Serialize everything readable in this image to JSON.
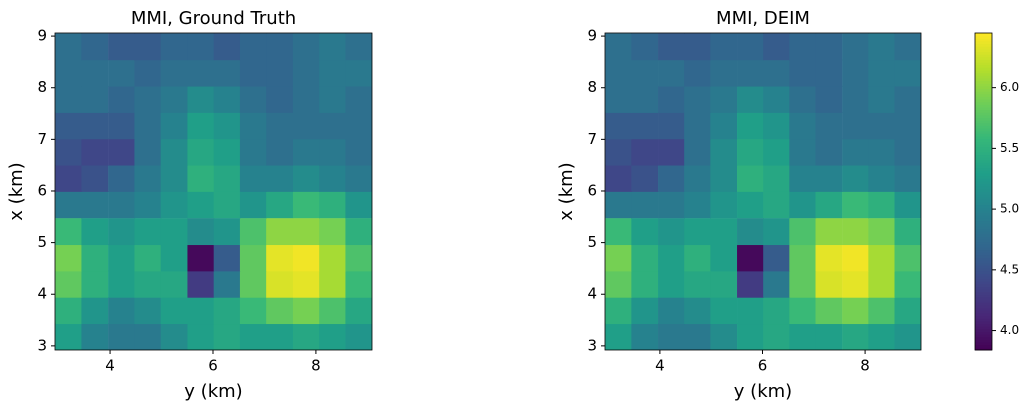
{
  "chart_data": [
    {
      "type": "heatmap",
      "title": "MMI, Ground Truth",
      "xlabel": "y (km)",
      "ylabel": "x (km)",
      "xlim": [
        2.93,
        9.09
      ],
      "ylim": [
        2.92,
        9.06
      ],
      "xticks": [
        4,
        6,
        8
      ],
      "yticks": [
        3,
        4,
        5,
        6,
        7,
        8,
        9
      ],
      "colormap": "viridis",
      "x": [
        3.19,
        3.7,
        4.22,
        4.73,
        5.24,
        5.76,
        6.27,
        6.78,
        7.29,
        7.81,
        8.32,
        8.83
      ],
      "y": [
        3.18,
        3.69,
        4.2,
        4.71,
        5.22,
        5.74,
        6.25,
        6.76,
        7.27,
        7.78,
        8.29,
        8.8
      ],
      "values": [
        [
          5.3,
          5.0,
          4.9,
          4.9,
          5.1,
          5.3,
          5.4,
          5.3,
          5.3,
          5.4,
          5.3,
          5.2
        ],
        [
          5.5,
          5.2,
          5.0,
          5.1,
          5.3,
          5.3,
          5.4,
          5.6,
          5.8,
          5.9,
          5.7,
          5.4
        ],
        [
          5.8,
          5.5,
          5.3,
          5.4,
          5.4,
          4.3,
          4.9,
          5.8,
          6.3,
          6.35,
          6.1,
          5.6
        ],
        [
          5.9,
          5.5,
          5.3,
          5.5,
          5.3,
          3.9,
          4.6,
          5.8,
          6.35,
          6.4,
          6.1,
          5.7
        ],
        [
          5.6,
          5.3,
          5.2,
          5.3,
          5.3,
          5.1,
          5.2,
          5.7,
          6.0,
          6.0,
          5.9,
          5.5
        ],
        [
          4.9,
          4.9,
          4.9,
          5.0,
          5.2,
          5.3,
          5.4,
          5.2,
          5.4,
          5.6,
          5.5,
          5.2
        ],
        [
          4.4,
          4.5,
          4.7,
          4.9,
          5.1,
          5.5,
          5.4,
          5.0,
          5.0,
          5.1,
          5.0,
          4.9
        ],
        [
          4.5,
          4.4,
          4.4,
          4.8,
          5.1,
          5.4,
          5.3,
          4.9,
          4.8,
          4.9,
          4.9,
          4.8
        ],
        [
          4.6,
          4.6,
          4.6,
          4.8,
          5.0,
          5.3,
          5.2,
          4.9,
          4.8,
          4.8,
          4.8,
          4.8
        ],
        [
          4.8,
          4.8,
          4.7,
          4.8,
          4.9,
          5.1,
          5.0,
          4.8,
          4.7,
          4.8,
          4.9,
          4.8
        ],
        [
          4.8,
          4.8,
          4.8,
          4.7,
          4.8,
          4.8,
          4.8,
          4.7,
          4.7,
          4.8,
          4.9,
          4.9
        ],
        [
          4.8,
          4.7,
          4.6,
          4.6,
          4.7,
          4.7,
          4.6,
          4.7,
          4.7,
          4.8,
          4.9,
          4.8
        ]
      ]
    },
    {
      "type": "heatmap",
      "title": "MMI, DEIM",
      "xlabel": "y (km)",
      "ylabel": "x (km)",
      "xlim": [
        2.93,
        9.09
      ],
      "ylim": [
        2.92,
        9.06
      ],
      "xticks": [
        4,
        6,
        8
      ],
      "yticks": [
        3,
        4,
        5,
        6,
        7,
        8,
        9
      ],
      "colormap": "viridis",
      "x": [
        3.19,
        3.7,
        4.22,
        4.73,
        5.24,
        5.76,
        6.27,
        6.78,
        7.29,
        7.81,
        8.32,
        8.83
      ],
      "y": [
        3.18,
        3.69,
        4.2,
        4.71,
        5.22,
        5.74,
        6.25,
        6.76,
        7.27,
        7.78,
        8.29,
        8.8
      ],
      "values": [
        [
          5.3,
          5.0,
          4.9,
          4.9,
          5.1,
          5.3,
          5.4,
          5.3,
          5.3,
          5.4,
          5.3,
          5.2
        ],
        [
          5.5,
          5.2,
          5.0,
          5.1,
          5.3,
          5.3,
          5.4,
          5.6,
          5.8,
          5.9,
          5.7,
          5.4
        ],
        [
          5.8,
          5.5,
          5.3,
          5.4,
          5.4,
          4.3,
          4.9,
          5.8,
          6.3,
          6.35,
          6.1,
          5.6
        ],
        [
          5.9,
          5.5,
          5.3,
          5.5,
          5.3,
          3.9,
          4.6,
          5.8,
          6.35,
          6.4,
          6.1,
          5.7
        ],
        [
          5.6,
          5.3,
          5.2,
          5.3,
          5.3,
          5.1,
          5.2,
          5.7,
          6.0,
          6.0,
          5.9,
          5.5
        ],
        [
          4.9,
          4.9,
          4.9,
          5.0,
          5.2,
          5.3,
          5.4,
          5.2,
          5.4,
          5.6,
          5.5,
          5.2
        ],
        [
          4.4,
          4.5,
          4.7,
          4.9,
          5.1,
          5.5,
          5.4,
          5.0,
          5.0,
          5.1,
          5.0,
          4.9
        ],
        [
          4.5,
          4.4,
          4.4,
          4.8,
          5.1,
          5.4,
          5.3,
          4.9,
          4.8,
          4.9,
          4.9,
          4.8
        ],
        [
          4.6,
          4.6,
          4.6,
          4.8,
          5.0,
          5.3,
          5.2,
          4.9,
          4.8,
          4.8,
          4.8,
          4.8
        ],
        [
          4.8,
          4.8,
          4.7,
          4.8,
          4.9,
          5.1,
          5.0,
          4.8,
          4.7,
          4.8,
          4.9,
          4.8
        ],
        [
          4.8,
          4.8,
          4.8,
          4.7,
          4.8,
          4.8,
          4.8,
          4.7,
          4.7,
          4.8,
          4.9,
          4.9
        ],
        [
          4.8,
          4.7,
          4.6,
          4.6,
          4.7,
          4.7,
          4.6,
          4.7,
          4.7,
          4.8,
          4.9,
          4.8
        ]
      ],
      "colorbar": {
        "clim": [
          3.84,
          6.45
        ],
        "ticks": [
          {
            "value": 4,
            "label": "4.0"
          },
          {
            "value": 4.5,
            "label": "4.5"
          },
          {
            "value": 5,
            "label": "5.0"
          },
          {
            "value": 5.5,
            "label": "5.5"
          },
          {
            "value": 6,
            "label": "6.0"
          }
        ]
      }
    }
  ]
}
